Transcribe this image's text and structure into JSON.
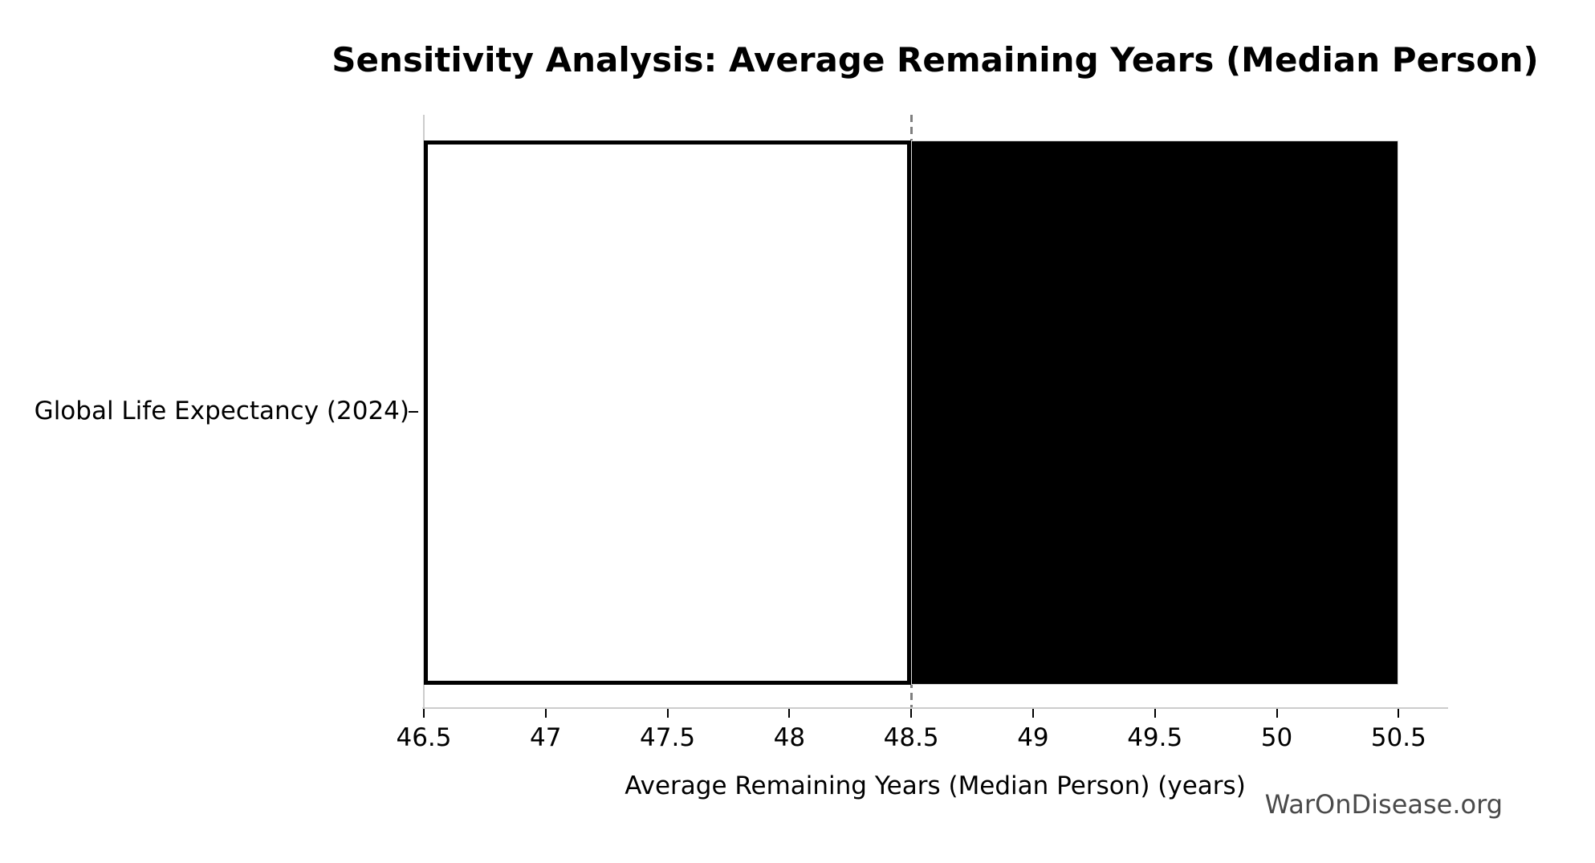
{
  "watermark": "WarOnDisease.org",
  "chart_data": {
    "type": "bar",
    "orientation": "horizontal",
    "title": "Sensitivity Analysis: Average Remaining Years (Median Person)",
    "xlabel": "Average Remaining Years (Median Person) (years)",
    "ylabel": "",
    "categories": [
      "Global Life Expectancy (2024)"
    ],
    "baseline": 48.5,
    "series": [
      {
        "name": "low",
        "start": 46.5,
        "end": 48.5,
        "fill": "#ffffff",
        "edge": "#000000",
        "edge_width": 5
      },
      {
        "name": "high",
        "start": 48.5,
        "end": 50.5,
        "fill": "#000000",
        "edge": "#d9d9d9",
        "edge_width": 1
      }
    ],
    "xticks": [
      46.5,
      47,
      47.5,
      48,
      48.5,
      49,
      49.5,
      50,
      50.5
    ],
    "xtick_labels": [
      "46.5",
      "47",
      "47.5",
      "48",
      "48.5",
      "49",
      "49.5",
      "50",
      "50.5"
    ],
    "xlim": [
      46.5,
      50.7
    ],
    "grid": false,
    "legend": false,
    "reference_line": {
      "x": 48.5,
      "style": "dashed",
      "color": "#7f7f7f"
    },
    "colors": {
      "spine": "#cccccc",
      "tick": "#000000",
      "text": "#000000",
      "watermark": "#4a4a4a"
    }
  }
}
